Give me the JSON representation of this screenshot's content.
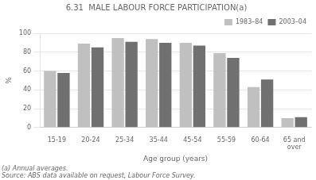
{
  "chart_data": {
    "type": "bar",
    "title": "6.31  MALE LABOUR FORCE PARTICIPATION(a)",
    "categories": [
      "15-19",
      "20-24",
      "25-34",
      "35-44",
      "45-54",
      "55-59",
      "60-64",
      "65 and\nover"
    ],
    "series": [
      {
        "name": "1983–84",
        "color": "#c0c0c0",
        "values": [
          60,
          89,
          95,
          94,
          90,
          79,
          43,
          10
        ]
      },
      {
        "name": "2003–04",
        "color": "#707070",
        "values": [
          58,
          85,
          91,
          90,
          87,
          74,
          51,
          11
        ]
      }
    ],
    "xlabel": "Age group (years)",
    "ylabel": "%",
    "ylim": [
      0,
      100
    ],
    "yticks": [
      0,
      20,
      40,
      60,
      80,
      100
    ],
    "grid": true,
    "legend": "upper right",
    "annotations": [
      "(a) Annual averages.",
      "Source: ABS data available on request, Labour Force Survey."
    ]
  }
}
